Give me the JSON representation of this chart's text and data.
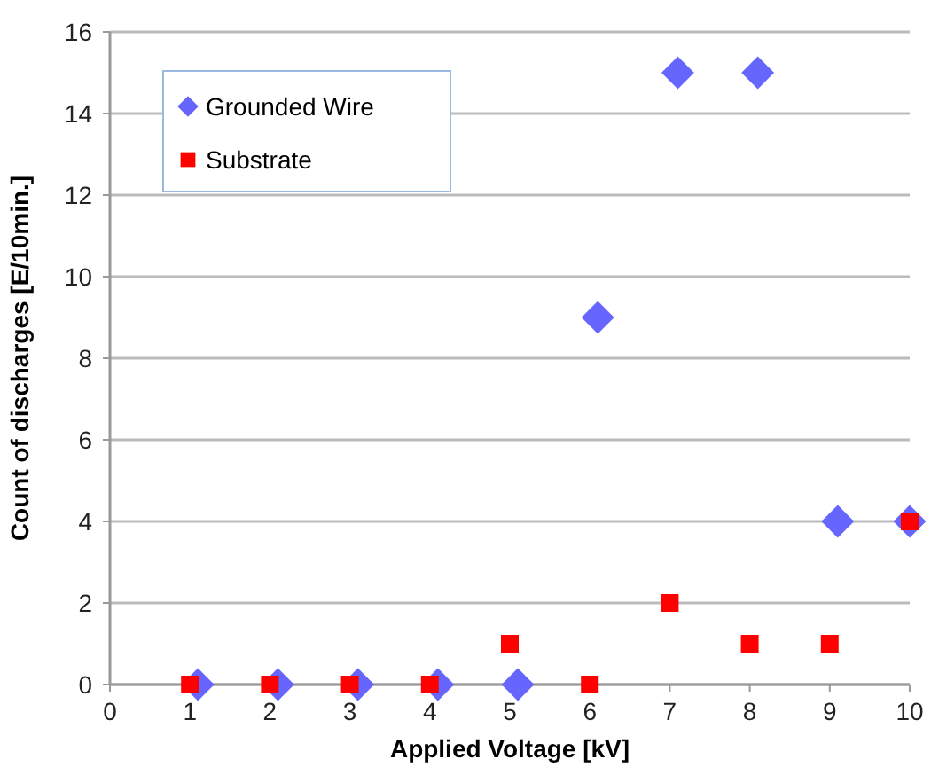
{
  "chart_data": {
    "type": "scatter",
    "xlabel": "Applied Voltage [kV]",
    "ylabel": "Count of discharges [E/10min.]",
    "series": [
      {
        "name": "Grounded Wire",
        "color": "#6666ff",
        "marker": "diamond",
        "x": [
          1.1,
          2.1,
          3.1,
          4.1,
          5.1,
          6.1,
          7.1,
          8.1,
          9.1,
          10
        ],
        "values": [
          0,
          0,
          0,
          0,
          0,
          9,
          15,
          15,
          4,
          4
        ]
      },
      {
        "name": "Substrate",
        "color": "#ff0000",
        "marker": "square",
        "x": [
          1,
          2,
          3,
          4,
          5,
          6,
          7,
          8,
          9,
          10
        ],
        "values": [
          0,
          0,
          0,
          0,
          1,
          0,
          2,
          1,
          1,
          4
        ]
      }
    ],
    "xlim": [
      0,
      10
    ],
    "xticks": [
      0,
      1,
      2,
      3,
      4,
      5,
      6,
      7,
      8,
      9,
      10
    ],
    "ylim": [
      0,
      16
    ],
    "yticks": [
      0,
      2,
      4,
      6,
      8,
      10,
      12,
      14,
      16
    ],
    "grid": "y",
    "legend": "top left"
  }
}
